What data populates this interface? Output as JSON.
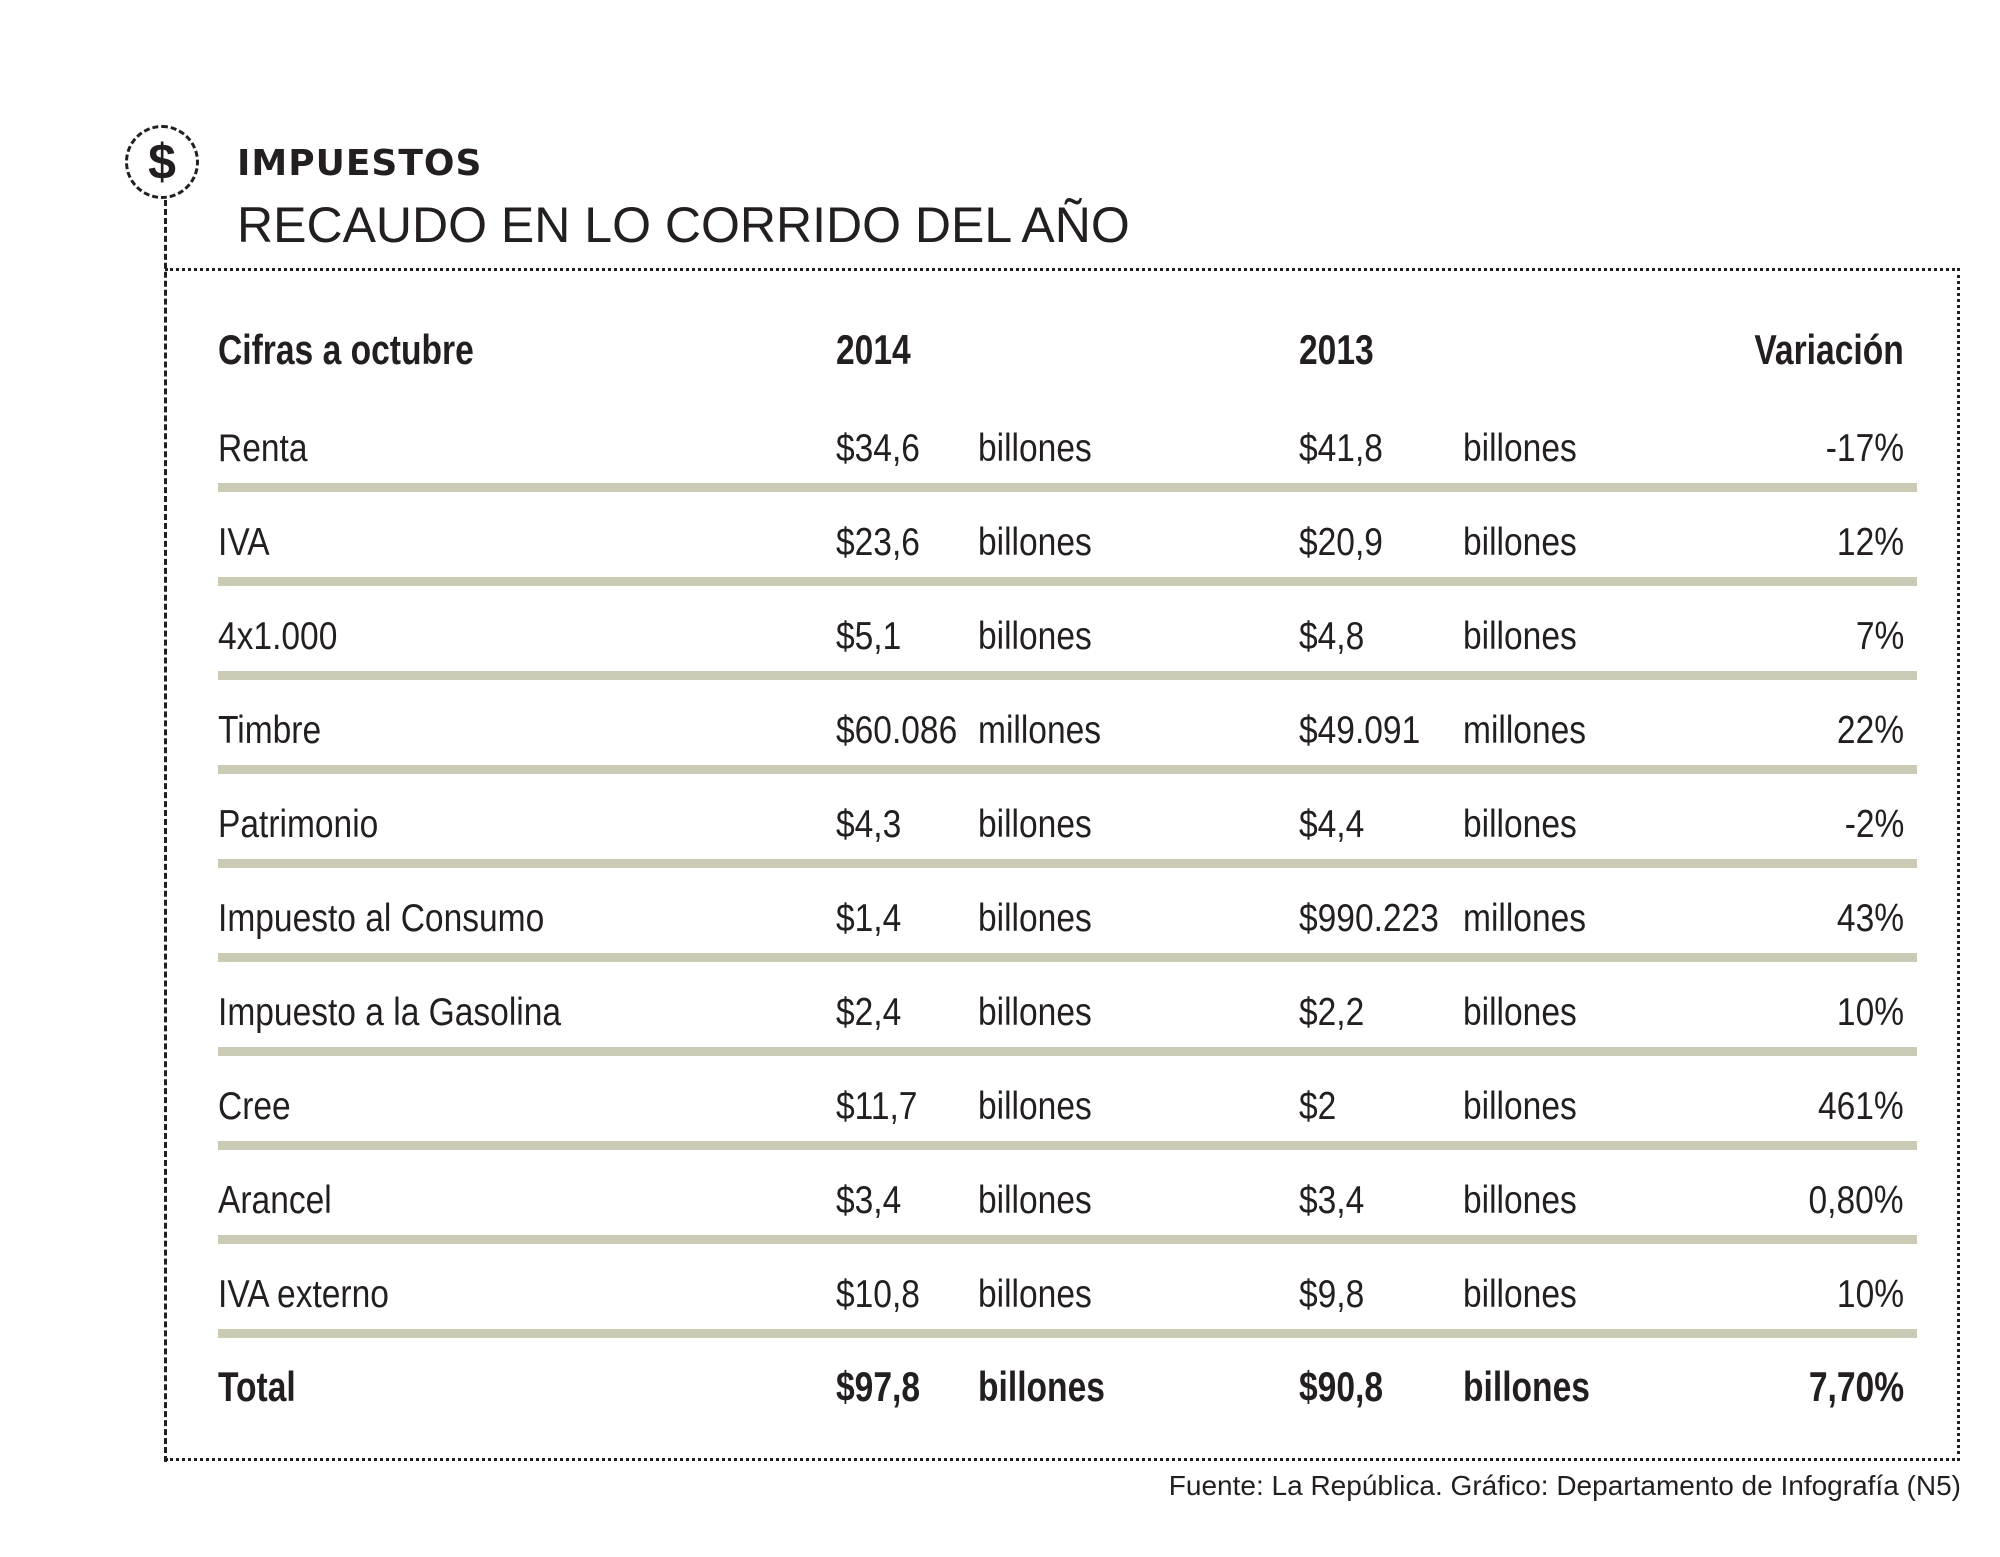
{
  "icon": "dollar-sign-icon",
  "icon_glyph": "$",
  "section": "IMPUESTOS",
  "title": "RECAUDO EN LO CORRIDO DEL AÑO",
  "table": {
    "headers": {
      "label": "Cifras a octubre",
      "y2014": "2014",
      "y2013": "2013",
      "variation": "Variación"
    },
    "rows": [
      {
        "label": "Renta",
        "v2014": "$34,6",
        "u2014": "billones",
        "v2013": "$41,8",
        "u2013": "billones",
        "variation": "-17%"
      },
      {
        "label": "IVA",
        "v2014": "$23,6",
        "u2014": "billones",
        "v2013": "$20,9",
        "u2013": "billones",
        "variation": "12%"
      },
      {
        "label": "4x1.000",
        "v2014": "$5,1",
        "u2014": "billones",
        "v2013": "$4,8",
        "u2013": "billones",
        "variation": "7%"
      },
      {
        "label": "Timbre",
        "v2014": "$60.086",
        "u2014": "millones",
        "v2013": "$49.091",
        "u2013": "millones",
        "variation": "22%"
      },
      {
        "label": "Patrimonio",
        "v2014": "$4,3",
        "u2014": "billones",
        "v2013": "$4,4",
        "u2013": "billones",
        "variation": "-2%"
      },
      {
        "label": "Impuesto al Consumo",
        "v2014": "$1,4",
        "u2014": "billones",
        "v2013": "$990.223",
        "u2013": "millones",
        "variation": "43%"
      },
      {
        "label": "Impuesto a la Gasolina",
        "v2014": "$2,4",
        "u2014": "billones",
        "v2013": "$2,2",
        "u2013": "billones",
        "variation": "10%"
      },
      {
        "label": "Cree",
        "v2014": "$11,7",
        "u2014": "billones",
        "v2013": "$2",
        "u2013": "billones",
        "variation": "461%"
      },
      {
        "label": "Arancel",
        "v2014": "$3,4",
        "u2014": "billones",
        "v2013": "$3,4",
        "u2013": "billones",
        "variation": "0,80%"
      },
      {
        "label": "IVA externo",
        "v2014": "$10,8",
        "u2014": "billones",
        "v2013": "$9,8",
        "u2013": "billones",
        "variation": "10%"
      }
    ],
    "total": {
      "label": "Total",
      "v2014": "$97,8",
      "u2014": "billones",
      "v2013": "$90,8",
      "u2013": "billones",
      "variation": "7,70%"
    }
  },
  "footer": "Fuente: La República. Gráfico: Departamento de Infografía (N5)",
  "colors": {
    "separator": "#cbcab4",
    "text": "#231f20"
  }
}
